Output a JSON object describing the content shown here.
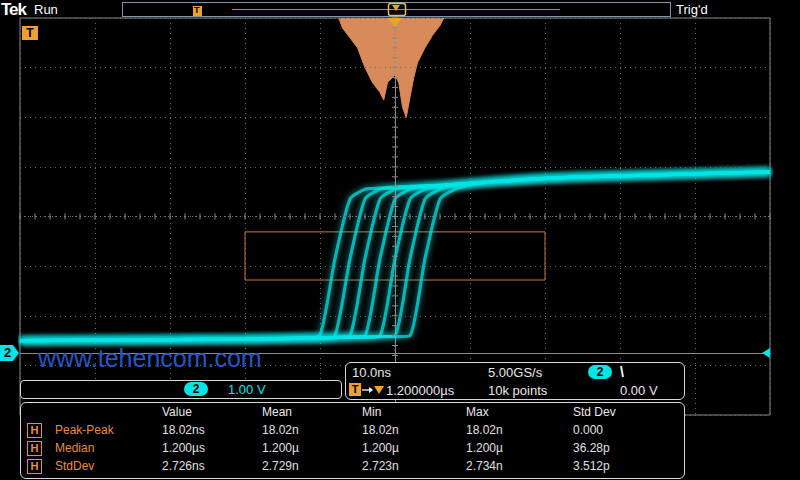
{
  "header": {
    "brand": "Tek",
    "state": "Run",
    "trigger_status": "Trig'd"
  },
  "markers": {
    "trigger": "T",
    "channel": "2"
  },
  "watermark": "www.tehencom.com",
  "vertical": {
    "channel": "2",
    "scale": "1.00 V"
  },
  "horizontal": {
    "scale": "10.0ns",
    "sample_rate": "5.00GS/s",
    "trigger_source": "2",
    "trigger_slope": "\\",
    "trigger_position": "1.200000µs",
    "record_length": "10k points",
    "trigger_level": "0.00 V"
  },
  "measurements": {
    "columns": [
      "Value",
      "Mean",
      "Min",
      "Max",
      "Std Dev"
    ],
    "rows": [
      {
        "badge": "H",
        "name": "Peak-Peak",
        "cells": [
          "18.02ns",
          "18.02n",
          "18.02n",
          "18.02n",
          "0.000"
        ]
      },
      {
        "badge": "H",
        "name": "Median",
        "cells": [
          "1.200µs",
          "1.200µ",
          "1.200µ",
          "1.200µ",
          "36.28p"
        ]
      },
      {
        "badge": "H",
        "name": "StdDev",
        "cells": [
          "2.726ns",
          "2.729n",
          "2.723n",
          "2.734n",
          "3.512p"
        ]
      }
    ]
  },
  "chart_data": {
    "type": "line",
    "color": "#00e5e5",
    "grid": true,
    "tick_labels": false,
    "xlim": [
      -50,
      50
    ],
    "xticks": [
      -50,
      -40,
      -30,
      -20,
      -10,
      0,
      10,
      20,
      30,
      40,
      50
    ],
    "ylim": [
      -1.25,
      6.75
    ],
    "yticks": [
      -1.25,
      -0.25,
      0.75,
      1.75,
      2.75,
      3.75,
      4.75,
      5.75,
      6.75
    ],
    "trigger_time": 0,
    "trigger_level": 0,
    "x": [
      -50,
      -20,
      -12,
      -10,
      -8,
      -6,
      -4,
      -2,
      0,
      2,
      4,
      6,
      8,
      10,
      12,
      20,
      30,
      50
    ],
    "series": [
      {
        "values": [
          0.25,
          0.28,
          0.3,
          0.35,
          1.9,
          3.1,
          3.3,
          3.32,
          3.34,
          3.36,
          3.37,
          3.38,
          3.4,
          3.42,
          3.44,
          3.52,
          3.57,
          3.65
        ]
      },
      {
        "values": [
          0.25,
          0.28,
          0.3,
          0.3,
          0.35,
          1.9,
          3.1,
          3.3,
          3.33,
          3.35,
          3.37,
          3.38,
          3.4,
          3.42,
          3.44,
          3.52,
          3.57,
          3.65
        ]
      },
      {
        "values": [
          0.25,
          0.28,
          0.3,
          0.3,
          0.31,
          0.35,
          1.9,
          3.1,
          3.3,
          3.33,
          3.36,
          3.38,
          3.4,
          3.42,
          3.44,
          3.52,
          3.57,
          3.65
        ]
      },
      {
        "values": [
          0.25,
          0.28,
          0.3,
          0.3,
          0.31,
          0.32,
          0.35,
          1.9,
          3.1,
          3.3,
          3.34,
          3.37,
          3.4,
          3.42,
          3.44,
          3.52,
          3.57,
          3.65
        ]
      },
      {
        "values": [
          0.25,
          0.28,
          0.3,
          0.3,
          0.31,
          0.32,
          0.32,
          0.35,
          1.9,
          3.1,
          3.3,
          3.35,
          3.39,
          3.42,
          3.44,
          3.52,
          3.57,
          3.65
        ]
      },
      {
        "values": [
          0.25,
          0.28,
          0.3,
          0.3,
          0.31,
          0.32,
          0.32,
          0.33,
          0.35,
          1.9,
          3.1,
          3.3,
          3.37,
          3.41,
          3.44,
          3.52,
          3.57,
          3.65
        ]
      },
      {
        "values": [
          0.25,
          0.28,
          0.3,
          0.3,
          0.31,
          0.32,
          0.32,
          0.33,
          0.33,
          0.35,
          1.9,
          3.1,
          3.3,
          3.38,
          3.43,
          3.52,
          3.57,
          3.65
        ]
      }
    ],
    "histogram": {
      "color": "#d98a5a",
      "x": [
        -7.5,
        -7,
        -6,
        -5,
        -4,
        -3,
        -2,
        -1.5,
        -1,
        0,
        0.5,
        1,
        1.5,
        2,
        2.5,
        3,
        4,
        5,
        6,
        6.5
      ],
      "values": [
        0,
        0.2,
        0.4,
        0.6,
        1.0,
        1.3,
        1.5,
        1.65,
        1.3,
        1.15,
        1.3,
        1.8,
        2.0,
        1.6,
        1.2,
        0.9,
        0.6,
        0.35,
        0.15,
        0
      ],
      "ylim": [
        0,
        8
      ],
      "box": {
        "x": [
          -20,
          20
        ],
        "y": [
          1.47,
          2.44
        ],
        "color": "#c8783c"
      }
    }
  }
}
